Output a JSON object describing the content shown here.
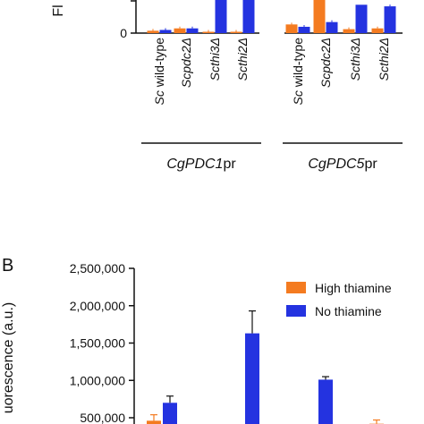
{
  "chart_data": [
    {
      "panel": "",
      "type": "bar",
      "grouped": true,
      "ylabel_visible_fragment": "Fl",
      "y_tick_labels": [
        "0"
      ],
      "groups": [
        {
          "label_italic": "CgPDC1",
          "label_suffix": "pr",
          "categories": [
            {
              "parts": [
                {
                  "t": "Sc",
                  "i": true
                },
                {
                  "t": " wild-type",
                  "i": false
                }
              ]
            },
            {
              "parts": [
                {
                  "t": "Scpdc2Δ",
                  "i": true
                }
              ]
            },
            {
              "parts": [
                {
                  "t": "Scthi3Δ",
                  "i": true
                }
              ]
            },
            {
              "parts": [
                {
                  "t": "Scthi2Δ",
                  "i": true
                }
              ]
            }
          ]
        },
        {
          "label_italic": "CgPDC5",
          "label_suffix": "pr",
          "categories": [
            {
              "parts": [
                {
                  "t": "Sc",
                  "i": true
                },
                {
                  "t": " wild-type",
                  "i": false
                }
              ]
            },
            {
              "parts": [
                {
                  "t": "Scpdc2Δ",
                  "i": true
                }
              ]
            },
            {
              "parts": [
                {
                  "t": "Scthi3Δ",
                  "i": true
                }
              ]
            },
            {
              "parts": [
                {
                  "t": "Scthi2Δ",
                  "i": true
                }
              ]
            }
          ]
        }
      ],
      "series": [
        {
          "name": "High thiamine",
          "color": "#f47b20",
          "values": [
            0.03,
            0.06,
            0.01,
            0.015,
            0.11,
            1.0,
            0.05,
            0.06
          ]
        },
        {
          "name": "No thiamine",
          "color": "#2433e0",
          "values": [
            0.04,
            0.06,
            1.0,
            1.0,
            0.08,
            0.14,
            0.36,
            0.34
          ]
        }
      ],
      "y_ratio_of_visible_top": true,
      "ylim_ratio": [
        0,
        0.42
      ]
    },
    {
      "panel": "B",
      "type": "bar",
      "grouped": true,
      "ylabel_visible_fragment": "uorescence (a.u.)",
      "y_ticks": [
        500000,
        1000000,
        1500000,
        2000000,
        2500000
      ],
      "y_tick_labels": [
        "500,000",
        "1,000,000",
        "1,500,000",
        "2,000,000",
        "2,500,000"
      ],
      "ylim": [
        0,
        2500000
      ],
      "legend": {
        "position": "top-right",
        "entries": [
          {
            "name": "High thiamine",
            "color": "#f47b20"
          },
          {
            "name": "No thiamine",
            "color": "#2433e0"
          }
        ]
      },
      "series": [
        {
          "name": "High thiamine",
          "color": "#f47b20",
          "values": [
            460000,
            60000,
            60000,
            420000
          ],
          "errors": [
            80000,
            10000,
            10000,
            50000
          ]
        },
        {
          "name": "No thiamine",
          "color": "#2433e0",
          "values": [
            700000,
            1630000,
            1010000,
            60000
          ],
          "errors": [
            90000,
            300000,
            40000,
            10000
          ]
        }
      ]
    }
  ]
}
